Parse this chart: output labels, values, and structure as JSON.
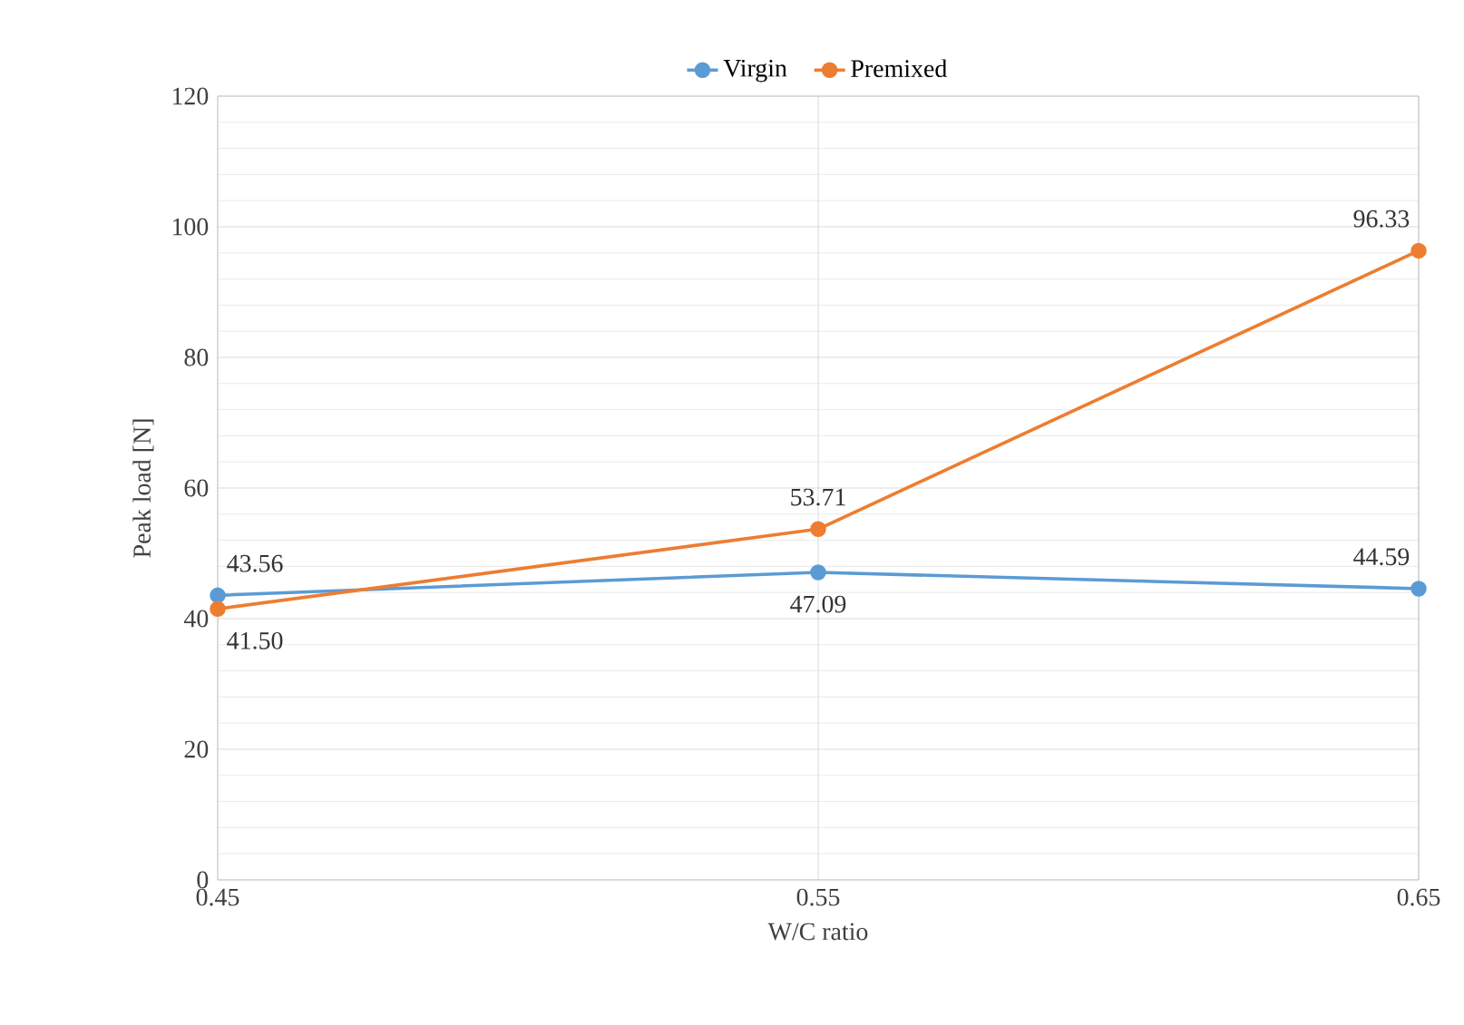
{
  "chart_data": {
    "type": "line",
    "xlabel": "W/C ratio",
    "ylabel": "Peak load [N]",
    "x": [
      0.45,
      0.55,
      0.65
    ],
    "series": [
      {
        "name": "Virgin",
        "color": "#5b9bd5",
        "values": [
          43.56,
          47.09,
          44.59
        ],
        "value_labels": [
          "43.56",
          "47.09",
          "44.59"
        ]
      },
      {
        "name": "Premixed",
        "color": "#ed7d31",
        "values": [
          41.5,
          53.71,
          96.33
        ],
        "value_labels": [
          "41.50",
          "53.71",
          "96.33"
        ]
      }
    ],
    "xlim": [
      0.45,
      0.65
    ],
    "xticks": [
      0.45,
      0.55,
      0.65
    ],
    "ylim": [
      0,
      120
    ],
    "yticks": [
      0,
      20,
      40,
      60,
      80,
      100,
      120
    ],
    "grid": true,
    "legend": "top",
    "marker": "circle",
    "line_style": "solid"
  }
}
